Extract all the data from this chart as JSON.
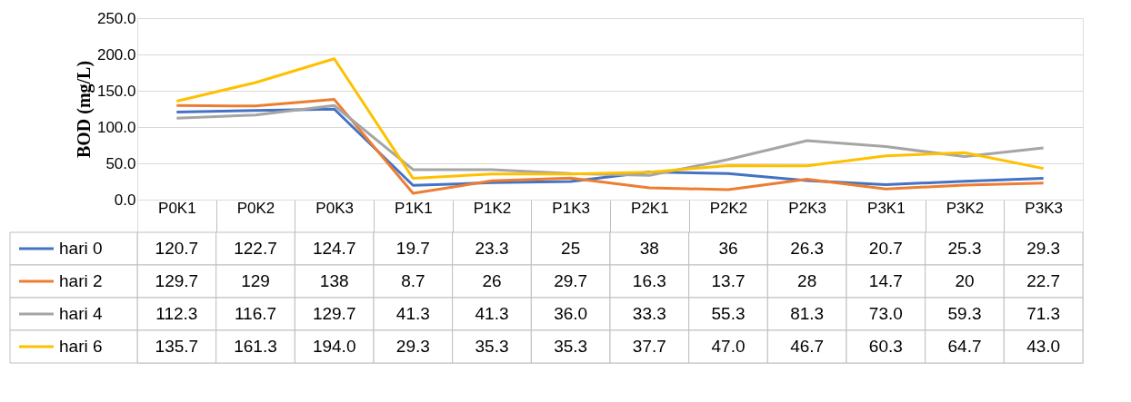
{
  "chart_data": {
    "type": "line",
    "ylabel": "BOD (mg/L)",
    "categories": [
      "P0K1",
      "P0K2",
      "P0K3",
      "P1K1",
      "P1K2",
      "P1K3",
      "P2K1",
      "P2K2",
      "P2K3",
      "P3K1",
      "P3K2",
      "P3K3"
    ],
    "series": [
      {
        "name": "hari 0",
        "color": "#4472c4",
        "values": [
          120.7,
          122.7,
          124.7,
          19.7,
          23.3,
          25,
          38,
          36,
          26.3,
          20.7,
          25.3,
          29.3
        ],
        "value_labels": [
          "120.7",
          "122.7",
          "124.7",
          "19.7",
          "23.3",
          "25",
          "38",
          "36",
          "26.3",
          "20.7",
          "25.3",
          "29.3"
        ]
      },
      {
        "name": "hari 2",
        "color": "#ed7d31",
        "values": [
          129.7,
          129,
          138,
          8.7,
          26,
          29.7,
          16.3,
          13.7,
          28,
          14.7,
          20,
          22.7
        ],
        "value_labels": [
          "129.7",
          "129",
          "138",
          "8.7",
          "26",
          "29.7",
          "16.3",
          "13.7",
          "28",
          "14.7",
          "20",
          "22.7"
        ]
      },
      {
        "name": "hari 4",
        "color": "#a5a5a5",
        "values": [
          112.3,
          116.7,
          129.7,
          41.3,
          41.3,
          36.0,
          33.3,
          55.3,
          81.3,
          73.0,
          59.3,
          71.3
        ],
        "value_labels": [
          "112.3",
          "116.7",
          "129.7",
          "41.3",
          "41.3",
          "36.0",
          "33.3",
          "55.3",
          "81.3",
          "73.0",
          "59.3",
          "71.3"
        ]
      },
      {
        "name": "hari 6",
        "color": "#ffc000",
        "values": [
          135.7,
          161.3,
          194.0,
          29.3,
          35.3,
          35.3,
          37.7,
          47.0,
          46.7,
          60.3,
          64.7,
          43.0
        ],
        "value_labels": [
          "135.7",
          "161.3",
          "194.0",
          "29.3",
          "35.3",
          "35.3",
          "37.7",
          "47.0",
          "46.7",
          "60.3",
          "64.7",
          "43.0"
        ]
      }
    ],
    "ylim": [
      0,
      250
    ],
    "yticks": [
      {
        "value": 0,
        "label": "0.0"
      },
      {
        "value": 50,
        "label": "50.0"
      },
      {
        "value": 100,
        "label": "100.0"
      },
      {
        "value": 150,
        "label": "150.0"
      },
      {
        "value": 200,
        "label": "200.0"
      },
      {
        "value": 250,
        "label": "250.0"
      }
    ],
    "grid": "y",
    "legend": "bottom",
    "marker": "none",
    "line_style": "solid"
  }
}
